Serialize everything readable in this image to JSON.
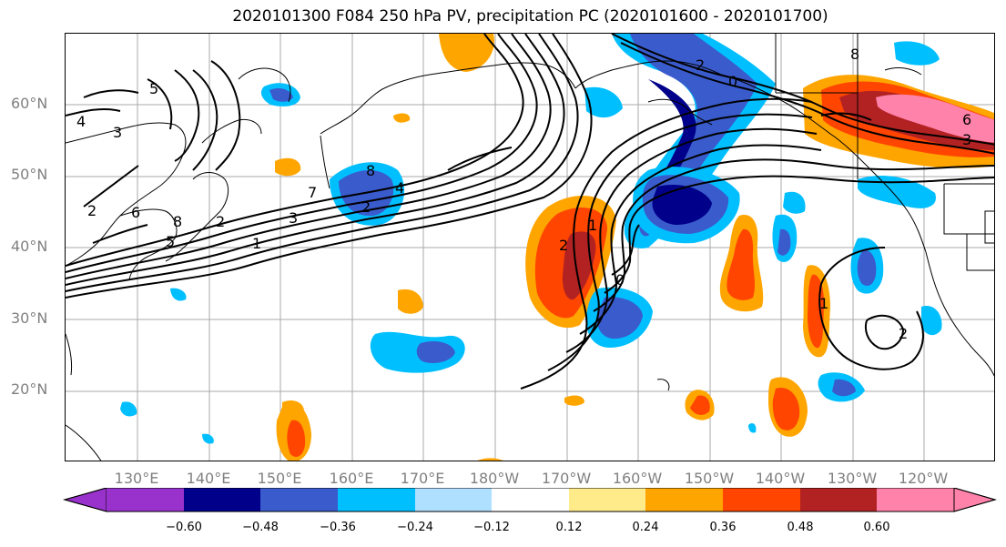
{
  "title": "2020101300 F084 250 hPa PV, precipitation PC (2020101600 - 2020101700)",
  "lat_labels": [
    "60°N",
    "50°N",
    "40°N",
    "30°N",
    "20°N"
  ],
  "lon_labels": [
    "130°E",
    "140°E",
    "150°E",
    "160°E",
    "170°E",
    "180°W",
    "170°W",
    "160°W",
    "150°W",
    "140°W",
    "130°W",
    "120°W"
  ],
  "colorbar": {
    "ticks": [
      "−0.60",
      "−0.48",
      "−0.36",
      "−0.24",
      "−0.12",
      "0.12",
      "0.24",
      "0.36",
      "0.48",
      "0.60"
    ],
    "colors": [
      "#9932cc",
      "#00008b",
      "#3a5bcc",
      "#00bfff",
      "#b0e0ff",
      "#ffffff",
      "#ffeb8a",
      "#ffa500",
      "#ff4500",
      "#b22222",
      "#ff82ab"
    ]
  },
  "contour_labels": [
    "5",
    "4",
    "3",
    "2",
    "6",
    "5",
    "8",
    "7",
    "3",
    "2",
    "1",
    "8",
    "4",
    "2",
    "2",
    "1",
    "0",
    "2",
    "0",
    "8",
    "6",
    "3",
    "1",
    "2"
  ]
}
